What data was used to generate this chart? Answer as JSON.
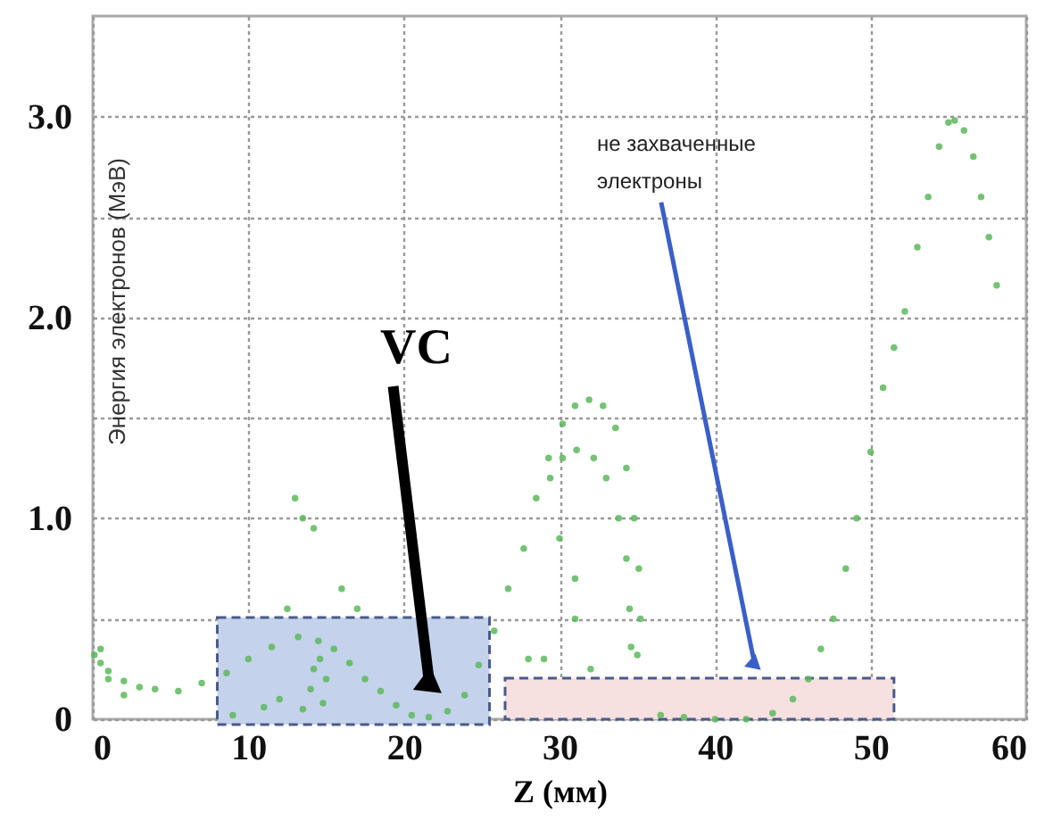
{
  "chart_data": {
    "type": "scatter",
    "xlabel": "Z (мм)",
    "ylabel": "Энергия электронов (МэВ)",
    "xlim": [
      0,
      60
    ],
    "ylim": [
      0,
      3.5
    ],
    "xticks": [
      0,
      10,
      20,
      30,
      40,
      50,
      60
    ],
    "yticks": [
      0,
      {
        "value": 0.5,
        "label": null
      },
      {
        "value": 1,
        "label": "1.0"
      },
      {
        "value": 1.5,
        "label": null
      },
      {
        "value": 2,
        "label": "2.0"
      },
      {
        "value": 2.5,
        "label": null
      },
      {
        "value": 3,
        "label": "3.0"
      }
    ],
    "grid": true,
    "marker": "circle",
    "series": [
      {
        "color": "#5cb85c",
        "x": [
          0.1,
          0.5,
          1,
          2,
          3,
          4,
          5.5,
          7,
          8.6,
          10,
          11.5,
          13.2,
          14.5,
          15.5,
          16.5,
          17.5,
          18.5,
          19.5,
          20.5,
          21.6,
          22.8,
          23.9,
          24.8,
          25.8,
          26.7,
          27.7,
          28.5,
          29.3,
          30.2,
          31,
          31.9,
          32.8,
          33.6,
          34.3,
          34.8,
          35.1,
          35.2,
          35,
          34.6,
          34.5,
          34.3,
          33.8,
          33,
          32.2,
          31.1,
          30.2,
          29.4,
          13.5,
          14,
          14.2,
          14.6,
          15,
          14.8,
          12,
          11,
          9,
          0.5,
          1,
          2,
          13,
          13.5,
          14.2,
          12.5,
          16,
          17,
          30,
          31,
          31,
          29,
          28,
          32,
          36.5,
          38,
          40,
          42,
          43.7,
          45,
          46,
          46.8,
          47.6,
          48.4,
          49.1,
          50,
          50.8,
          51.5,
          52.2,
          53,
          53.7,
          54.4,
          55,
          55.4,
          56,
          56.6,
          57.1,
          57.6,
          58.1
        ],
        "values": [
          0.32,
          0.28,
          0.24,
          0.19,
          0.16,
          0.15,
          0.14,
          0.18,
          0.23,
          0.3,
          0.36,
          0.41,
          0.39,
          0.35,
          0.28,
          0.2,
          0.14,
          0.07,
          0.02,
          0.01,
          0.04,
          0.12,
          0.27,
          0.44,
          0.65,
          0.85,
          1.1,
          1.3,
          1.47,
          1.56,
          1.59,
          1.56,
          1.45,
          1.25,
          1,
          0.75,
          0.5,
          0.32,
          0.36,
          0.55,
          0.8,
          1,
          1.2,
          1.3,
          1.34,
          1.3,
          1.2,
          0.05,
          0.15,
          0.25,
          0.3,
          0.2,
          0.08,
          0.1,
          0.06,
          0.02,
          0.35,
          0.2,
          0.12,
          1.1,
          1,
          0.95,
          0.55,
          0.65,
          0.55,
          0.9,
          0.7,
          0.5,
          0.3,
          0.3,
          0.25,
          0.02,
          0.01,
          0,
          0,
          0.03,
          0.1,
          0.2,
          0.35,
          0.5,
          0.75,
          1,
          1.33,
          1.65,
          1.85,
          2.03,
          2.35,
          2.6,
          2.85,
          2.97,
          2.98,
          2.93,
          2.8,
          2.6,
          2.4,
          2.16
        ]
      }
    ],
    "bands": [
      {
        "axis": "x",
        "from": 8,
        "to": 25.5,
        "color": "#c5d2ec"
      },
      {
        "axis": "x",
        "from": 26.5,
        "to": 51.5,
        "color": "#f6e0e0"
      }
    ],
    "annotations": [
      {
        "text": "VC",
        "x": 21.6,
        "y": 0.2
      },
      {
        "text": "не захваченные электроны",
        "x": 42.5,
        "y": 0.29
      }
    ]
  }
}
